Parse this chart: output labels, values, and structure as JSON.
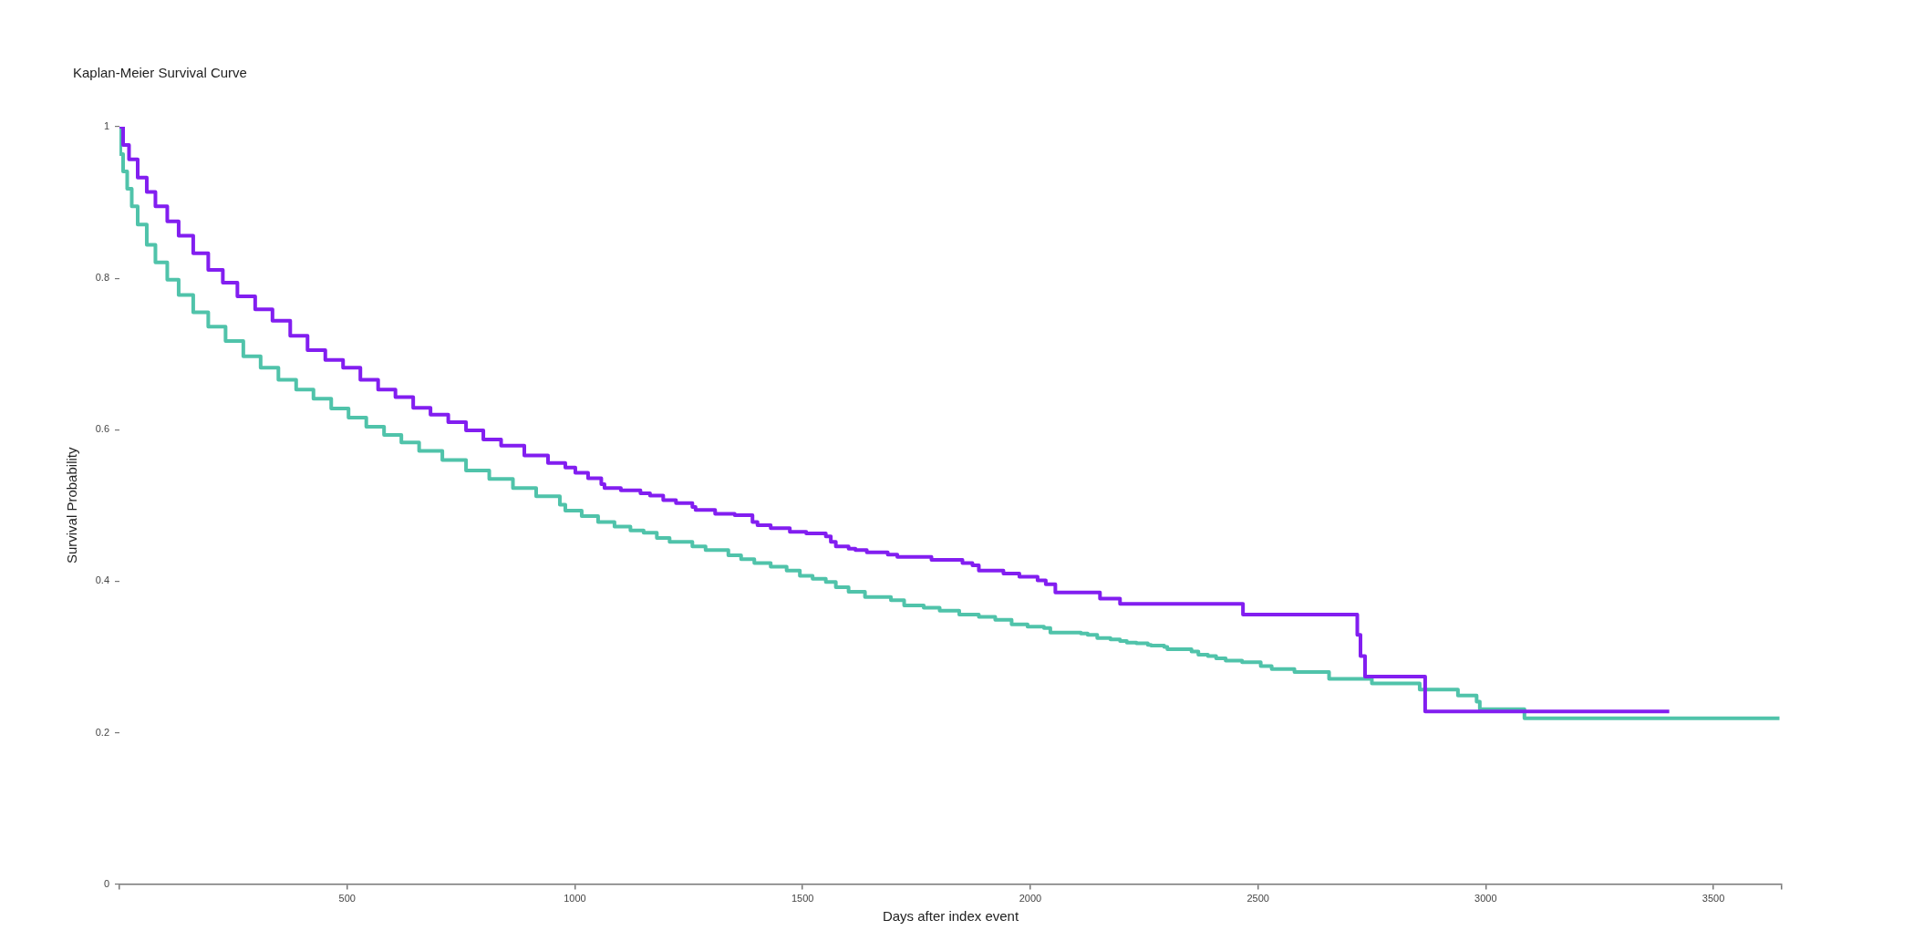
{
  "chart_data": {
    "type": "step",
    "title": "Kaplan-Meier Survival Curve",
    "xlabel": "Days after index event",
    "ylabel": "Survival Probability",
    "xlim": [
      0,
      3650
    ],
    "xticks": [
      {
        "value": 0,
        "label": null
      },
      500,
      1000,
      1500,
      2000,
      2500,
      3000,
      3500,
      {
        "value": 3650,
        "label": null
      }
    ],
    "ylim": [
      0,
      1
    ],
    "yticks": [
      0,
      0.2,
      0.4,
      0.6,
      0.8,
      1
    ],
    "grid": false,
    "legend": false,
    "marker": "none",
    "line_style": "solid",
    "series": [
      {
        "color": "#821ef0",
        "x": [
          0,
          8,
          21,
          40,
          60,
          79,
          105,
          130,
          162,
          195,
          227,
          259,
          298,
          336,
          375,
          413,
          452,
          491,
          529,
          568,
          606,
          645,
          683,
          722,
          761,
          799,
          838,
          889,
          941,
          979,
          1001,
          1029,
          1058,
          1065,
          1101,
          1144,
          1165,
          1194,
          1222,
          1258,
          1265,
          1308,
          1351,
          1390,
          1401,
          1430,
          1472,
          1508,
          1551,
          1562,
          1573,
          1601,
          1616,
          1641,
          1687,
          1708,
          1783,
          1851,
          1873,
          1887,
          1941,
          1976,
          2016,
          2034,
          2055,
          2153,
          2197,
          2467,
          2718,
          2725,
          2735,
          2867,
          3403
        ],
        "values": [
          1,
          0.976,
          0.957,
          0.933,
          0.914,
          0.895,
          0.875,
          0.856,
          0.833,
          0.811,
          0.794,
          0.776,
          0.759,
          0.744,
          0.724,
          0.705,
          0.692,
          0.682,
          0.666,
          0.653,
          0.643,
          0.629,
          0.62,
          0.61,
          0.599,
          0.587,
          0.579,
          0.566,
          0.556,
          0.55,
          0.543,
          0.536,
          0.528,
          0.523,
          0.52,
          0.516,
          0.513,
          0.507,
          0.503,
          0.498,
          0.494,
          0.489,
          0.487,
          0.478,
          0.474,
          0.47,
          0.465,
          0.463,
          0.459,
          0.452,
          0.446,
          0.443,
          0.441,
          0.438,
          0.435,
          0.432,
          0.428,
          0.424,
          0.421,
          0.414,
          0.41,
          0.406,
          0.401,
          0.396,
          0.385,
          0.377,
          0.37,
          0.356,
          0.329,
          0.301,
          0.274,
          0.228,
          0.228
        ]
      },
      {
        "color": "#50c3aa",
        "x": [
          0,
          2,
          8,
          17,
          27,
          40,
          60,
          79,
          105,
          130,
          162,
          195,
          233,
          272,
          310,
          349,
          388,
          426,
          465,
          503,
          542,
          581,
          619,
          658,
          709,
          761,
          812,
          864,
          915,
          967,
          979,
          1015,
          1051,
          1087,
          1122,
          1151,
          1180,
          1208,
          1258,
          1287,
          1337,
          1365,
          1394,
          1430,
          1465,
          1494,
          1522,
          1551,
          1573,
          1601,
          1637,
          1694,
          1723,
          1766,
          1801,
          1844,
          1887,
          1923,
          1959,
          1994,
          2030,
          2044,
          2111,
          2126,
          2147,
          2176,
          2197,
          2212,
          2233,
          2258,
          2265,
          2294,
          2301,
          2354,
          2369,
          2390,
          2408,
          2429,
          2465,
          2506,
          2530,
          2580,
          2656,
          2750,
          2855,
          2939,
          2980,
          2987,
          3085,
          3645
        ],
        "values": [
          1,
          0.964,
          0.941,
          0.918,
          0.895,
          0.871,
          0.844,
          0.821,
          0.798,
          0.778,
          0.755,
          0.736,
          0.717,
          0.697,
          0.682,
          0.666,
          0.653,
          0.641,
          0.628,
          0.616,
          0.604,
          0.593,
          0.583,
          0.572,
          0.56,
          0.546,
          0.535,
          0.523,
          0.512,
          0.501,
          0.493,
          0.486,
          0.478,
          0.472,
          0.467,
          0.464,
          0.457,
          0.452,
          0.446,
          0.441,
          0.434,
          0.429,
          0.424,
          0.419,
          0.414,
          0.407,
          0.403,
          0.399,
          0.392,
          0.386,
          0.379,
          0.375,
          0.368,
          0.365,
          0.361,
          0.356,
          0.353,
          0.349,
          0.343,
          0.34,
          0.338,
          0.332,
          0.331,
          0.329,
          0.325,
          0.323,
          0.321,
          0.319,
          0.318,
          0.316,
          0.315,
          0.313,
          0.31,
          0.307,
          0.303,
          0.301,
          0.298,
          0.295,
          0.293,
          0.288,
          0.284,
          0.28,
          0.271,
          0.265,
          0.257,
          0.249,
          0.241,
          0.231,
          0.219,
          0.219
        ]
      }
    ]
  }
}
